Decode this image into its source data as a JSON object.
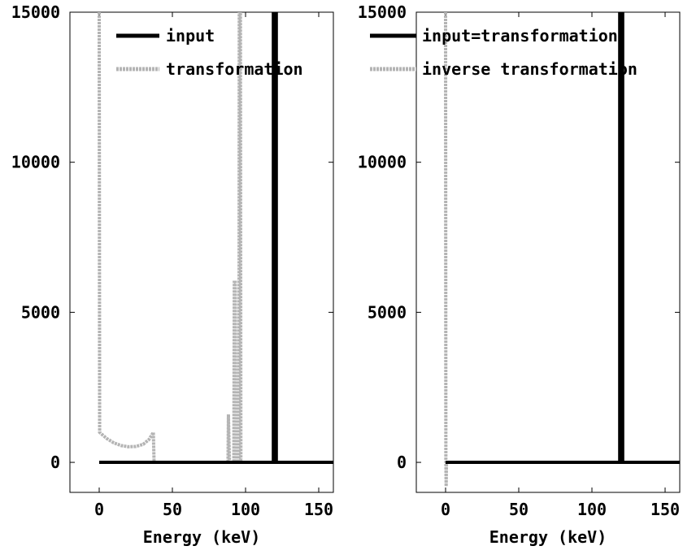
{
  "chart_data": [
    {
      "type": "line",
      "xlabel": "Energy (keV)",
      "ylabel": "",
      "xlim": [
        -20,
        160
      ],
      "ylim": [
        -1000,
        15000
      ],
      "xticks": [
        0,
        50,
        100,
        150
      ],
      "yticks": [
        0,
        5000,
        10000,
        15000
      ],
      "legend_position": "top-right",
      "series": [
        {
          "name": "input",
          "color": "#000000",
          "points": [
            [
              0,
              0
            ],
            [
              119,
              0
            ],
            [
              119,
              15000
            ],
            [
              121,
              15000
            ],
            [
              121,
              0
            ],
            [
              160,
              0
            ]
          ]
        },
        {
          "name": "transformation",
          "color": "#b4b4b4",
          "points": [
            [
              0,
              15000
            ],
            [
              0.3,
              1000
            ],
            [
              5,
              800
            ],
            [
              10,
              650
            ],
            [
              15,
              560
            ],
            [
              20,
              520
            ],
            [
              25,
              530
            ],
            [
              30,
              600
            ],
            [
              34,
              760
            ],
            [
              37,
              1000
            ],
            [
              37.5,
              0
            ],
            [
              88,
              0
            ],
            [
              88.3,
              1600
            ],
            [
              89,
              0
            ],
            [
              92,
              0
            ],
            [
              92.3,
              6000
            ],
            [
              93,
              6000
            ],
            [
              93.5,
              0
            ],
            [
              95.5,
              0
            ],
            [
              95.7,
              15000
            ],
            [
              96.5,
              15000
            ],
            [
              96.8,
              0
            ],
            [
              100,
              0
            ]
          ]
        }
      ]
    },
    {
      "type": "line",
      "xlabel": "Energy (keV)",
      "ylabel": "",
      "xlim": [
        -20,
        160
      ],
      "ylim": [
        -1000,
        15000
      ],
      "xticks": [
        0,
        50,
        100,
        150
      ],
      "yticks": [
        0,
        5000,
        10000,
        15000
      ],
      "legend_position": "top-right",
      "series": [
        {
          "name": "input=transformation",
          "color": "#000000",
          "points": [
            [
              0,
              0
            ],
            [
              119,
              0
            ],
            [
              119,
              15000
            ],
            [
              121,
              15000
            ],
            [
              121,
              0
            ],
            [
              160,
              0
            ]
          ]
        },
        {
          "name": "inverse transformation",
          "color": "#b4b4b4",
          "points": [
            [
              0,
              15000
            ],
            [
              0.2,
              0
            ],
            [
              0.4,
              -800
            ],
            [
              0.6,
              0
            ]
          ]
        }
      ]
    }
  ]
}
